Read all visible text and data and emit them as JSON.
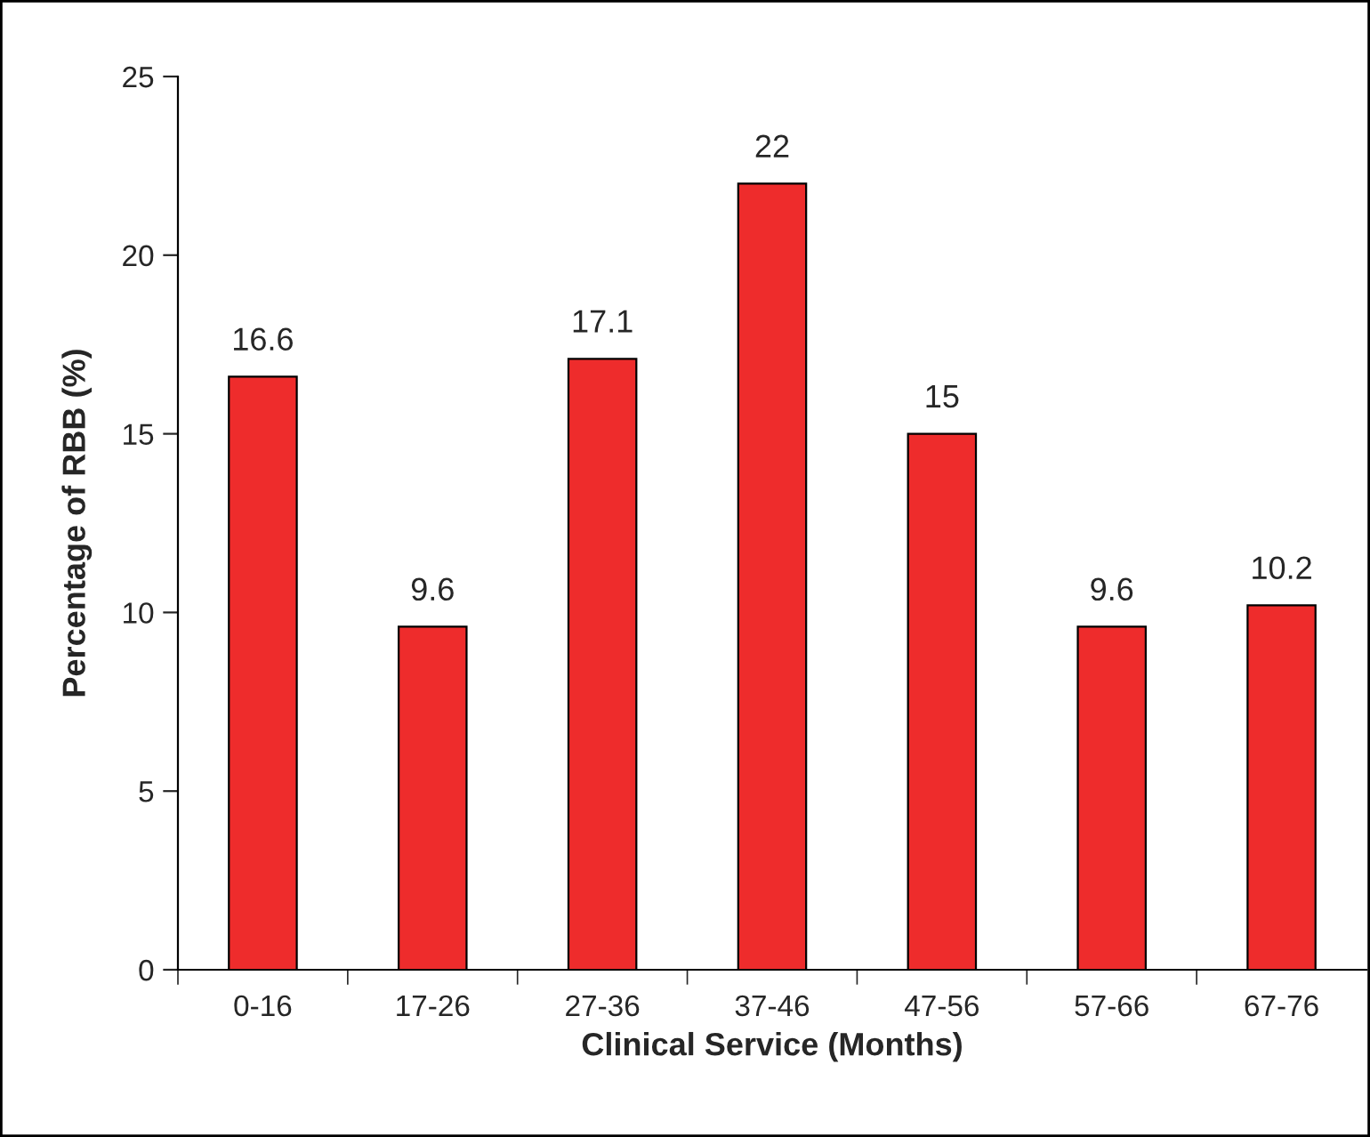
{
  "chart_data": {
    "type": "bar",
    "xlabel": "Clinical Service (Months)",
    "ylabel": "Percentage of RBB (%)",
    "categories": [
      "0-16",
      "17-26",
      "27-36",
      "37-46",
      "47-56",
      "57-66",
      "67-76"
    ],
    "values": [
      16.6,
      9.6,
      17.1,
      22,
      15,
      9.6,
      10.2
    ],
    "color": "#ee2c2c",
    "ylim": [
      0,
      25
    ],
    "yticks": [
      0,
      5,
      10,
      15,
      20,
      25
    ],
    "data_labels": true,
    "grid": false,
    "legend": false
  }
}
